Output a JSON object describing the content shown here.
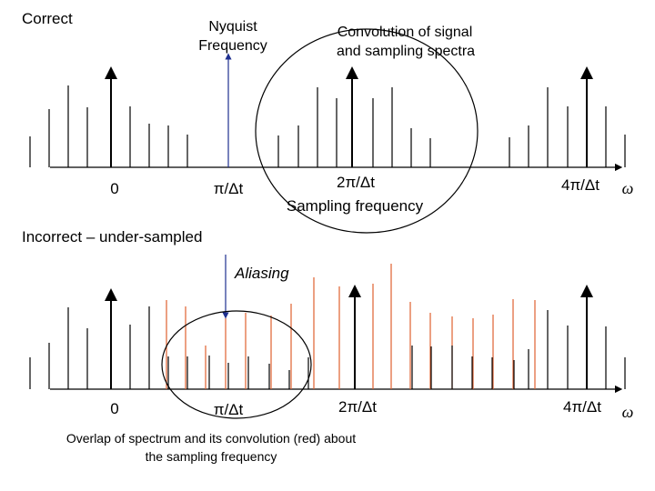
{
  "top": {
    "heading": "Correct",
    "nyquist_line1": "Nyquist",
    "nyquist_line2": "Frequency",
    "convolution_line1": "Convolution of signal",
    "convolution_line2": "and sampling spectra",
    "ticks": [
      "0",
      "π/Δt",
      "2π/Δt",
      "4π/Δt"
    ],
    "sampling_label": "Sampling frequency",
    "axis_symbol": "ω"
  },
  "bottom": {
    "heading": "Incorrect – under-sampled",
    "aliasing_label": "Aliasing",
    "ticks": [
      "0",
      "π/Δt",
      "2π/Δt",
      "4π/Δt"
    ],
    "axis_symbol": "ω",
    "caption_line1": "Overlap of spectrum and its convolution (red) about",
    "caption_line2": "the sampling frequency"
  },
  "colors": {
    "spectrum": "#000000",
    "convolution": "#e06030",
    "nyquist_marker": "#1f2f8f"
  }
}
